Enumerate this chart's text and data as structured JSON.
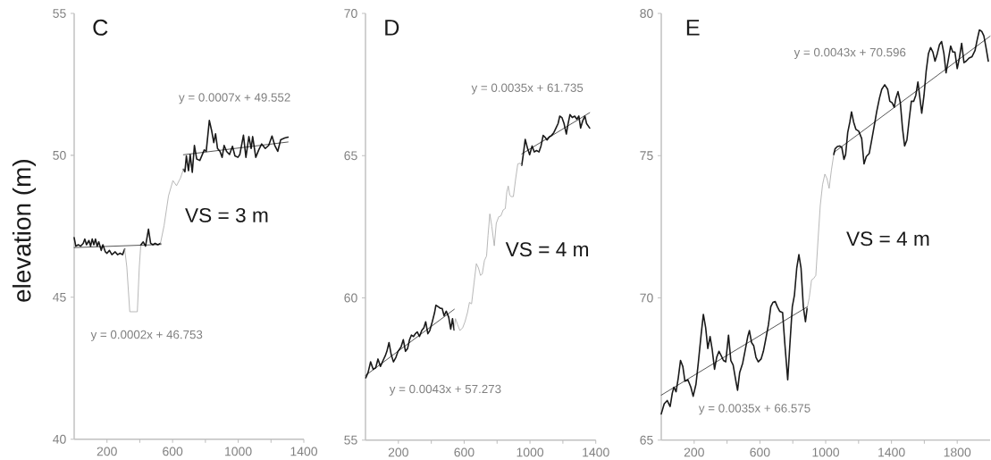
{
  "chart_data": [
    {
      "type": "line",
      "title": "C",
      "ylabel": "elevation (m)",
      "annotations": [
        "y = 0.0007x + 49.552",
        "VS = 3 m",
        "y = 0.0002x + 46.753"
      ],
      "xlim": [
        0,
        1400
      ],
      "xticks": [
        200,
        {
          "value": 400,
          "label": null
        },
        600,
        {
          "value": 800,
          "label": null
        },
        1000,
        {
          "value": 1200,
          "label": null
        },
        1400
      ],
      "ylim": [
        40,
        55
      ],
      "yticks": [
        40,
        45,
        50,
        55
      ],
      "series": [
        {
          "color": "#1a1a1a",
          "x": [
            0,
            10,
            25,
            40,
            55,
            65,
            75,
            90,
            100,
            110,
            120,
            130,
            140,
            150,
            165,
            175,
            190,
            200,
            215,
            230,
            250,
            265,
            280,
            295,
            308,
            357,
            406,
            421,
            435,
            453,
            466,
            480,
            493,
            510,
            526,
            596,
            666,
            675,
            684,
            697,
            707,
            720,
            733,
            747,
            766,
            793,
            805,
            824,
            838,
            851,
            862,
            874,
            889,
            902,
            914,
            929,
            947,
            965,
            980,
            998,
            1010,
            1032,
            1047,
            1065,
            1079,
            1088,
            1107,
            1125,
            1143,
            1165,
            1186,
            1206,
            1223,
            1241,
            1259,
            1283,
            1304
          ],
          "values": [
            47.1,
            46.8,
            46.85,
            46.8,
            46.9,
            47.05,
            46.85,
            47.0,
            46.8,
            47.05,
            46.85,
            47.05,
            46.8,
            46.95,
            46.65,
            46.85,
            46.6,
            46.55,
            46.65,
            46.5,
            46.6,
            46.5,
            46.55,
            46.5,
            46.7,
            null,
            46.84,
            46.95,
            46.8,
            47.4,
            46.9,
            46.85,
            46.9,
            46.85,
            46.9,
            null,
            49.51,
            49.42,
            49.98,
            49.46,
            50.03,
            49.4,
            50.35,
            49.87,
            49.82,
            50.19,
            50.14,
            51.23,
            50.87,
            50.45,
            50.76,
            50.24,
            50.14,
            49.93,
            50.35,
            50.14,
            50.03,
            50.32,
            49.98,
            49.93,
            50.03,
            50.71,
            49.93,
            50.66,
            50.24,
            50.66,
            49.93,
            50.19,
            50.4,
            50.24,
            50.35,
            50.68,
            50.35,
            50.14,
            50.55,
            50.61,
            50.64
          ]
        },
        {
          "color": "#a6a6a6",
          "x": [
            308,
            321,
            339,
            385,
            397,
            406,
            466,
            526,
            548,
            575,
            602,
            624,
            648,
            666
          ],
          "values": [
            46.7,
            46.06,
            44.49,
            44.49,
            46.06,
            46.84,
            null,
            46.9,
            47.52,
            48.57,
            49.11,
            48.93,
            49.2,
            49.51
          ]
        },
        {
          "color": "#000000",
          "x": [
            0,
            530,
            598,
            666,
            1304
          ],
          "values": [
            46.75,
            46.86,
            null,
            50.02,
            50.47
          ]
        }
      ]
    },
    {
      "type": "line",
      "title": "D",
      "annotations": [
        "y = 0.0035x + 61.735",
        "VS = 4 m",
        "y = 0.0043x + 57.273"
      ],
      "xlim": [
        0,
        1400
      ],
      "xticks": [
        200,
        {
          "value": 400,
          "label": null
        },
        600,
        {
          "value": 800,
          "label": null
        },
        1000,
        {
          "value": 1200,
          "label": null
        },
        1400
      ],
      "ylim": [
        55,
        70
      ],
      "yticks": [
        55,
        60,
        65,
        70
      ],
      "series": [
        {
          "color": "#1a1a1a",
          "x": [
            2,
            16,
            31,
            47,
            62,
            76,
            91,
            107,
            120,
            130,
            143,
            156,
            170,
            185,
            198,
            216,
            230,
            243,
            256,
            268,
            279,
            292,
            303,
            315,
            328,
            342,
            355,
            366,
            379,
            391,
            406,
            420,
            428,
            442,
            455,
            466,
            478,
            491,
            506,
            518,
            529,
            538,
            744,
            950,
            959,
            971,
            986,
            998,
            1013,
            1026,
            1040,
            1055,
            1067,
            1080,
            1091,
            1104,
            1116,
            1131,
            1145,
            1158,
            1171,
            1181,
            1194,
            1207,
            1221,
            1230,
            1243,
            1257,
            1272,
            1285,
            1297,
            1308,
            1321,
            1334,
            1344,
            1363
          ],
          "values": [
            57.19,
            57.38,
            57.75,
            57.49,
            57.54,
            57.85,
            57.59,
            57.8,
            57.96,
            58.12,
            58.43,
            58.01,
            57.75,
            57.91,
            58.12,
            58.27,
            58.53,
            58.12,
            58.22,
            58.53,
            58.69,
            58.64,
            58.74,
            58.8,
            58.64,
            58.85,
            58.95,
            59.16,
            58.74,
            58.85,
            59.16,
            59.48,
            59.74,
            59.69,
            59.63,
            59.63,
            59.37,
            59.53,
            59.32,
            58.9,
            59.27,
            58.87,
            null,
            64.66,
            65.03,
            65.57,
            65.24,
            65.03,
            65.34,
            65.13,
            65.18,
            65.13,
            65.34,
            65.71,
            65.65,
            65.55,
            65.65,
            65.71,
            65.81,
            65.97,
            66.13,
            66.39,
            66.34,
            66.13,
            65.76,
            66.07,
            66.44,
            66.34,
            66.39,
            66.28,
            66.39,
            65.97,
            66.23,
            66.39,
            66.13,
            65.97
          ]
        },
        {
          "color": "#a6a6a6",
          "x": [
            538,
            547,
            560,
            574,
            591,
            605,
            620,
            632,
            645,
            660,
            674,
            687,
            699,
            710,
            723,
            736,
            745,
            756,
            768,
            783,
            795,
            810,
            823,
            837,
            850,
            859,
            868,
            877,
            886,
            899,
            913,
            926,
            940,
            950
          ],
          "values": [
            58.87,
            59.27,
            59.06,
            58.85,
            58.95,
            59.16,
            59.48,
            59.84,
            59.79,
            60.52,
            61.2,
            61.05,
            60.79,
            60.84,
            61.31,
            61.47,
            62.2,
            62.95,
            62.51,
            61.83,
            62.62,
            62.85,
            62.88,
            63.09,
            63.14,
            63.72,
            63.93,
            63.61,
            63.56,
            63.56,
            64.19,
            64.71,
            64.73,
            64.66
          ]
        },
        {
          "color": "#000000",
          "x": [
            0,
            540,
            745,
            950,
            1363
          ],
          "values": [
            57.27,
            59.6,
            null,
            65.06,
            66.51
          ]
        }
      ]
    },
    {
      "type": "line",
      "title": "E",
      "annotations": [
        "y = 0.0043x + 70.596",
        "VS = 4 m",
        "y = 0.0035x + 66.575"
      ],
      "xlim": [
        0,
        2000
      ],
      "xticks": [
        200,
        {
          "value": 400,
          "label": null
        },
        600,
        {
          "value": 800,
          "label": null
        },
        1000,
        {
          "value": 1200,
          "label": null
        },
        1400,
        {
          "value": 1600,
          "label": null
        },
        1800
      ],
      "ylim": [
        65,
        80
      ],
      "yticks": [
        65,
        70,
        75,
        80
      ],
      "series": [
        {
          "color": "#1a1a1a",
          "x": [
            0,
            18,
            36,
            54,
            67,
            77,
            90,
            103,
            117,
            131,
            144,
            162,
            180,
            194,
            211,
            225,
            243,
            256,
            270,
            283,
            297,
            310,
            324,
            337,
            351,
            365,
            378,
            392,
            409,
            423,
            437,
            454,
            464,
            477,
            495,
            509,
            526,
            536,
            549,
            562,
            576,
            590,
            607,
            621,
            635,
            652,
            666,
            679,
            693,
            706,
            720,
            738,
            751,
            769,
            783,
            797,
            810,
            824,
            837,
            850,
            864,
            877,
            887,
            968,
            1049,
            1057,
            1071,
            1085,
            1098,
            1111,
            1121,
            1134,
            1147,
            1157,
            1170,
            1184,
            1201,
            1219,
            1233,
            1247,
            1265,
            1280,
            1296,
            1310,
            1327,
            1341,
            1359,
            1377,
            1390,
            1404,
            1417,
            1427,
            1440,
            1454,
            1467,
            1480,
            1494,
            1508,
            1521,
            1535,
            1548,
            1561,
            1571,
            1584,
            1598,
            1611,
            1625,
            1638,
            1652,
            1665,
            1679,
            1692,
            1705,
            1719,
            1732,
            1746,
            1760,
            1773,
            1786,
            1800,
            1813,
            1827,
            1841,
            1854,
            1872,
            1890,
            1908,
            1921,
            1935,
            1949,
            1962,
            1975,
            1989
          ],
          "values": [
            65.92,
            66.28,
            66.39,
            66.18,
            66.65,
            66.86,
            66.7,
            67.17,
            67.8,
            67.59,
            67.07,
            67.12,
            66.86,
            66.54,
            66.96,
            67.7,
            68.74,
            69.42,
            68.95,
            68.22,
            68.64,
            68.17,
            67.49,
            67.91,
            68.12,
            67.96,
            67.8,
            67.75,
            68.69,
            67.8,
            67.64,
            67.07,
            66.75,
            67.38,
            67.7,
            68.12,
            68.64,
            68.85,
            68.43,
            68.32,
            67.91,
            67.75,
            67.85,
            68.12,
            68.53,
            69.06,
            69.69,
            69.84,
            69.87,
            69.69,
            69.53,
            69.48,
            68.43,
            67.12,
            68.43,
            69.69,
            70.1,
            71.05,
            71.52,
            71.05,
            69.69,
            69.16,
            69.63,
            null,
            75.03,
            75.24,
            75.32,
            75.34,
            75.29,
            74.87,
            75.03,
            75.81,
            76.18,
            76.54,
            76.18,
            75.92,
            75.86,
            75.6,
            74.71,
            74.97,
            75.08,
            75.55,
            76.07,
            76.54,
            77.02,
            77.33,
            77.49,
            77.33,
            76.91,
            76.86,
            76.7,
            77.02,
            77.25,
            76.86,
            75.97,
            75.34,
            75.55,
            76.28,
            76.91,
            76.91,
            77.12,
            77.59,
            77.12,
            76.49,
            77.12,
            77.96,
            78.59,
            78.8,
            78.64,
            78.32,
            78.59,
            78.9,
            79.01,
            78.59,
            77.91,
            78.38,
            78.85,
            78.64,
            78.64,
            78.06,
            78.43,
            78.95,
            78.27,
            78.32,
            78.43,
            78.48,
            78.69,
            79.06,
            79.42,
            79.37,
            79.21,
            78.8,
            78.32
          ]
        },
        {
          "color": "#a6a6a6",
          "x": [
            887,
            900,
            914,
            927,
            940,
            954,
            967,
            981,
            995,
            1008,
            1021,
            1035,
            1049
          ],
          "values": [
            69.63,
            70.0,
            70.63,
            70.68,
            70.79,
            72.09,
            73.25,
            73.98,
            74.35,
            74.19,
            73.85,
            74.5,
            75.03
          ]
        },
        {
          "color": "#000000",
          "x": [
            0,
            887,
            968,
            1049,
            2000
          ],
          "values": [
            66.58,
            69.68,
            null,
            75.11,
            79.2
          ]
        }
      ]
    }
  ]
}
